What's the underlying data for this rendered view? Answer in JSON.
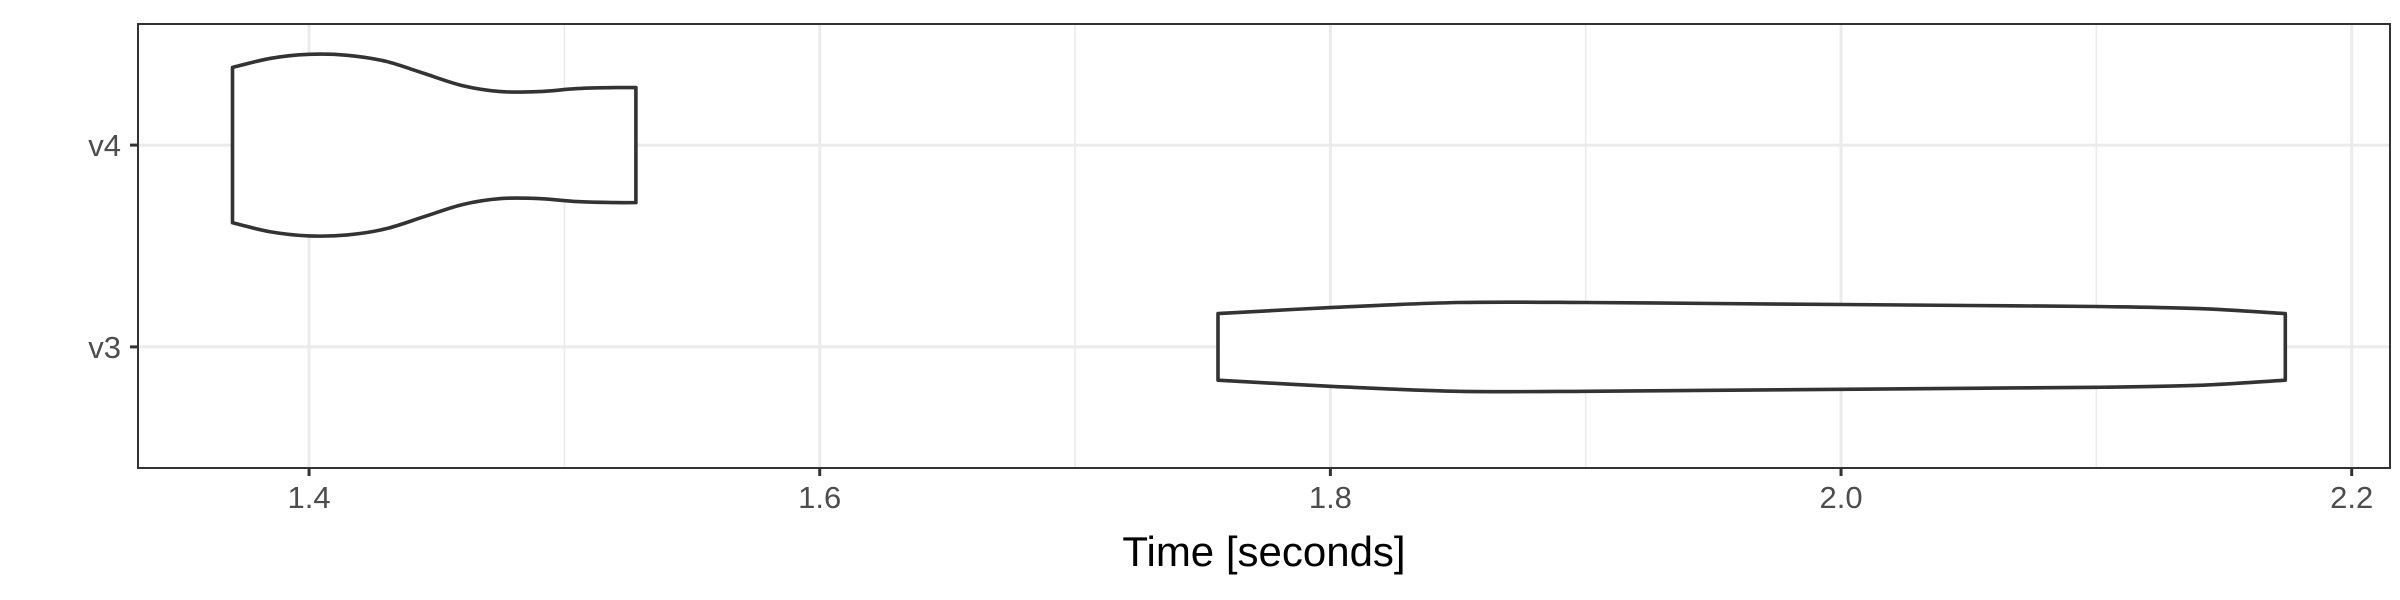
{
  "chart_data": {
    "type": "violin",
    "xlabel": "Time [seconds]",
    "ylabel": "",
    "xlim": [
      1.333,
      2.215
    ],
    "x_ticks": [
      1.4,
      1.6,
      1.8,
      2.0,
      2.2
    ],
    "x_tick_labels": [
      "1.4",
      "1.6",
      "1.8",
      "2.0",
      "2.2"
    ],
    "x_minor_ticks": [
      1.5,
      1.7,
      1.9,
      2.1
    ],
    "categories": [
      "v3",
      "v4"
    ],
    "grid": true,
    "series": [
      {
        "category": "v4",
        "min": 1.37,
        "max": 1.528,
        "profile": [
          [
            1.37,
            0.77
          ],
          [
            1.385,
            0.86
          ],
          [
            1.4,
            0.9
          ],
          [
            1.415,
            0.89
          ],
          [
            1.43,
            0.83
          ],
          [
            1.445,
            0.71
          ],
          [
            1.46,
            0.59
          ],
          [
            1.475,
            0.53
          ],
          [
            1.49,
            0.53
          ],
          [
            1.505,
            0.56
          ],
          [
            1.52,
            0.57
          ],
          [
            1.528,
            0.57
          ]
        ]
      },
      {
        "category": "v3",
        "min": 1.756,
        "max": 2.174,
        "profile": [
          [
            1.756,
            0.33
          ],
          [
            1.8,
            0.39
          ],
          [
            1.85,
            0.44
          ],
          [
            1.9,
            0.44
          ],
          [
            1.95,
            0.43
          ],
          [
            2.0,
            0.42
          ],
          [
            2.05,
            0.41
          ],
          [
            2.1,
            0.4
          ],
          [
            2.14,
            0.38
          ],
          [
            2.174,
            0.33
          ]
        ]
      }
    ]
  }
}
